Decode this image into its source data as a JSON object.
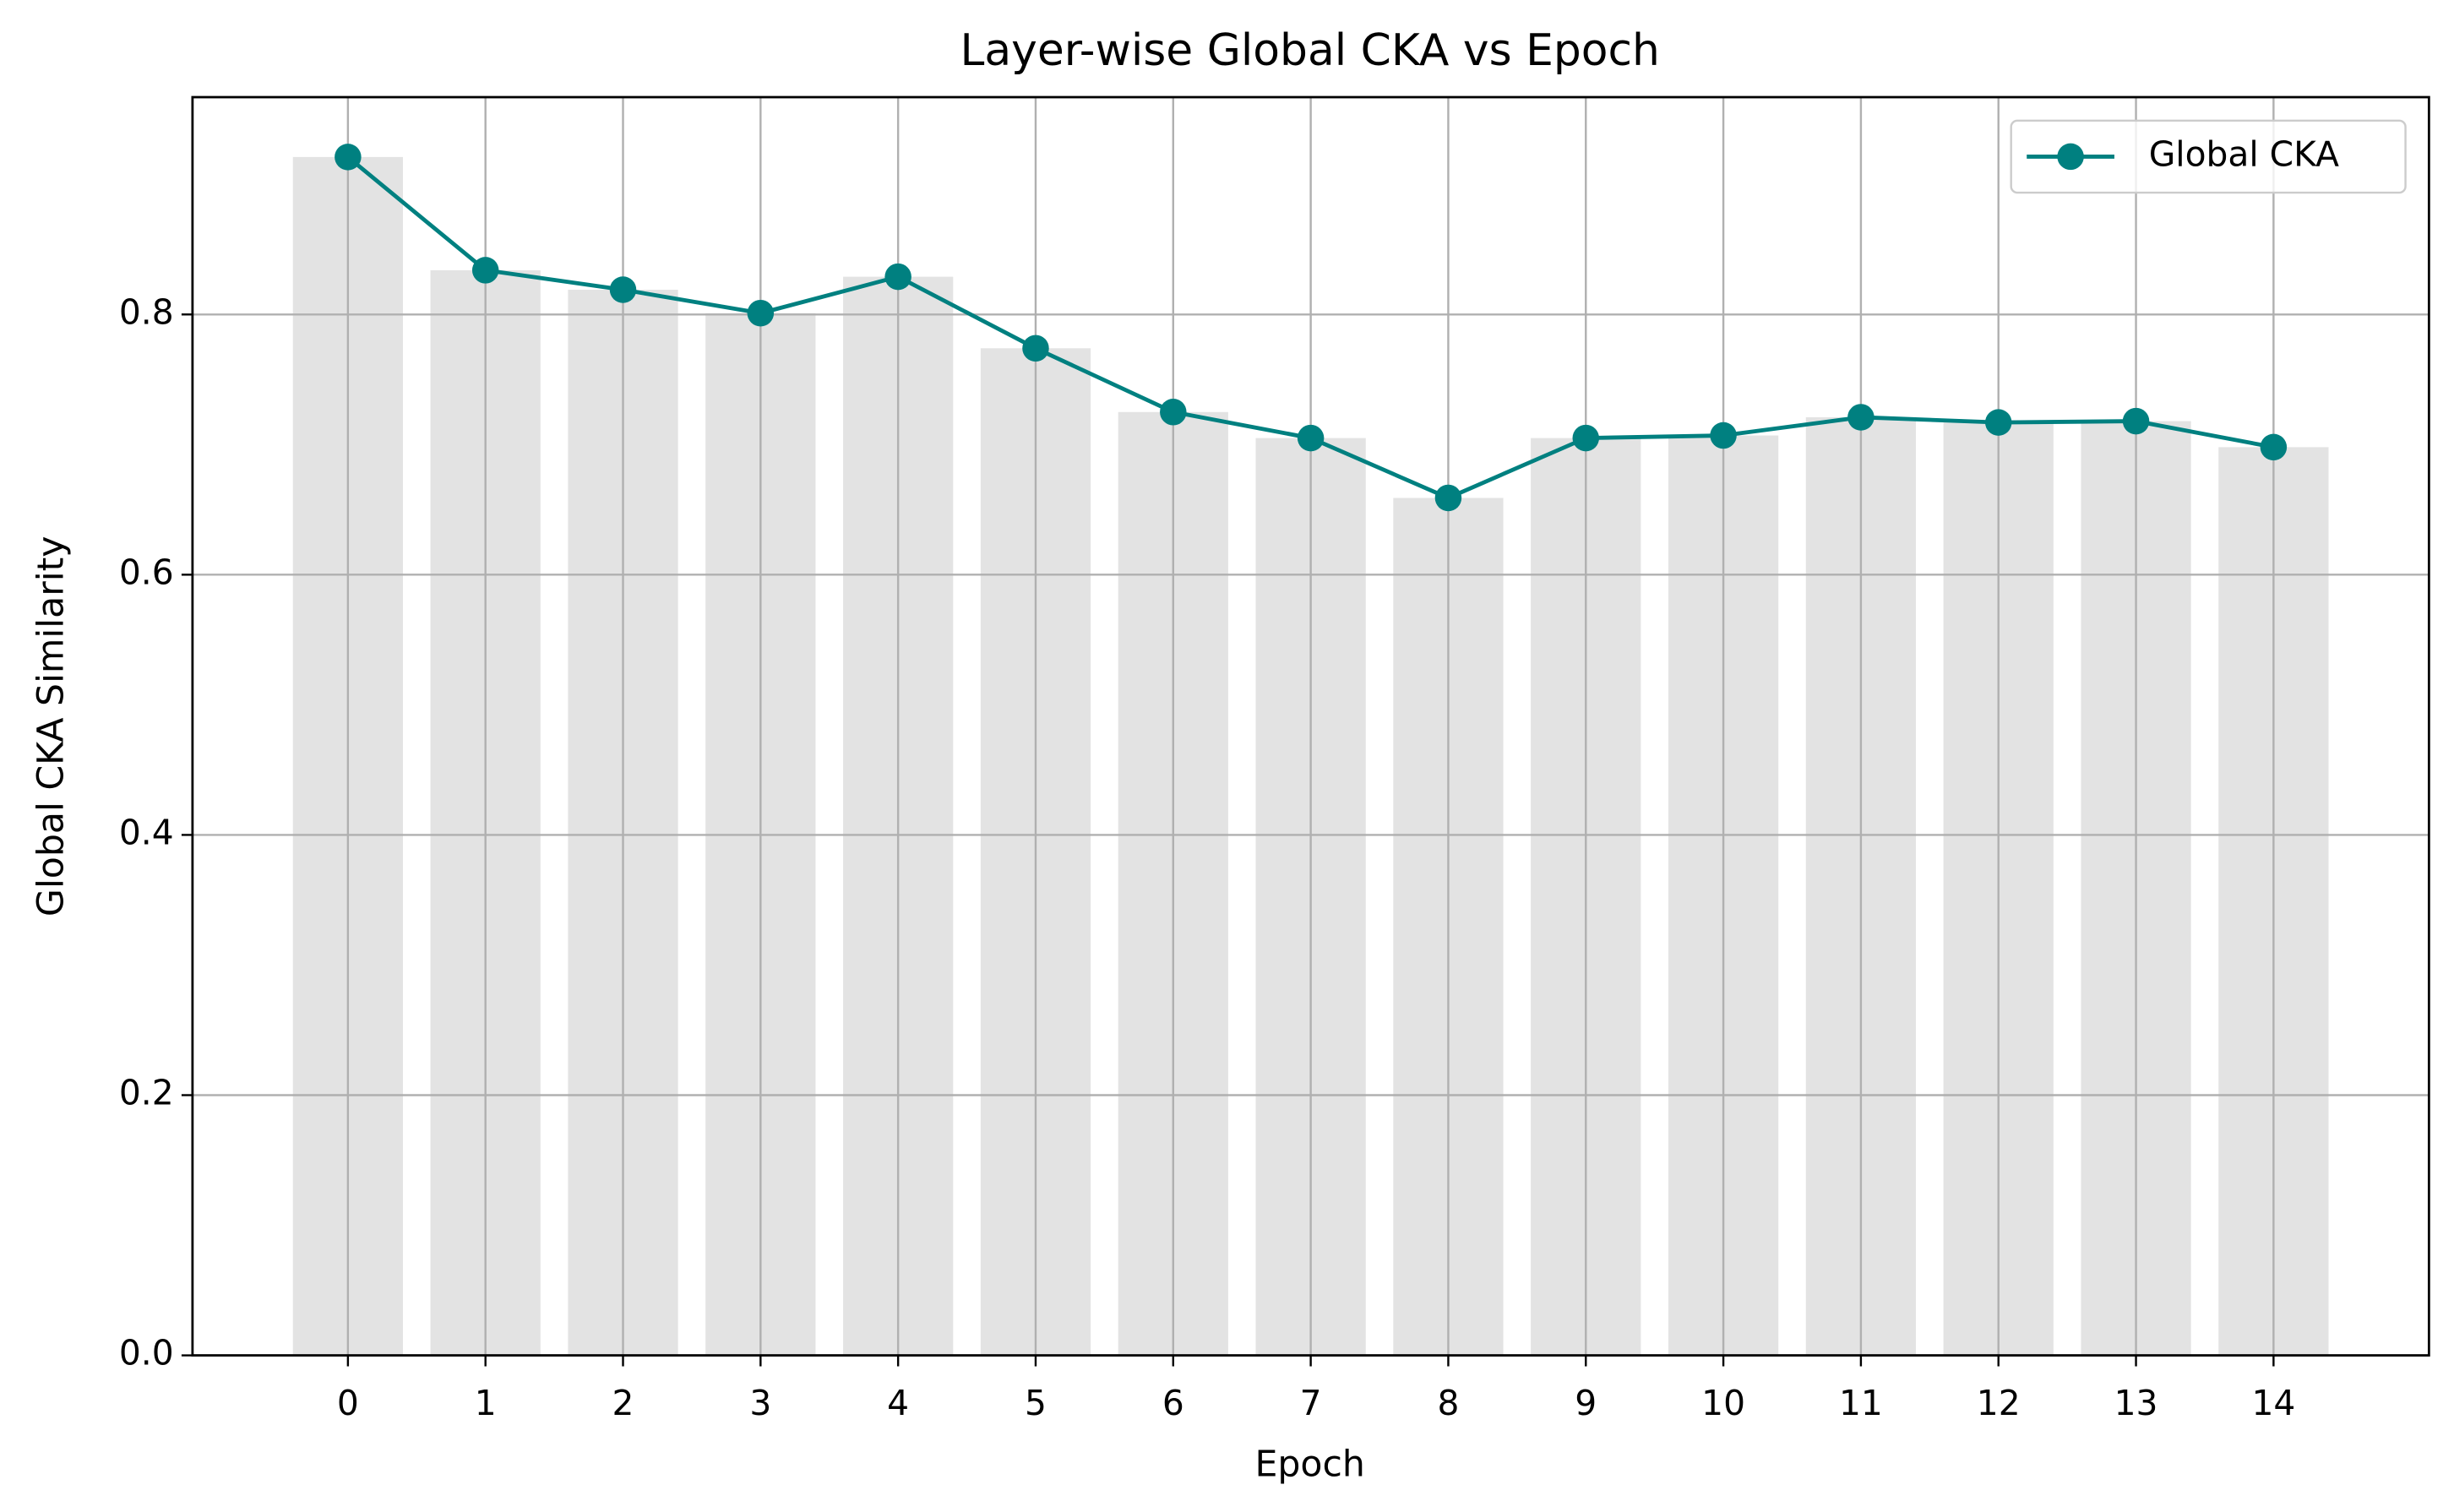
{
  "chart_data": {
    "type": "line",
    "title": "Layer-wise Global CKA vs Epoch",
    "x_label": "Epoch",
    "y_label": "Global CKA Similarity",
    "x": [
      0,
      1,
      2,
      3,
      4,
      5,
      6,
      7,
      8,
      9,
      10,
      11,
      12,
      13,
      14
    ],
    "series": [
      {
        "name": "Global CKA",
        "color": "#008080",
        "bar_color": "#e3e3e3",
        "values": [
          0.921,
          0.834,
          0.819,
          0.801,
          0.829,
          0.774,
          0.725,
          0.705,
          0.659,
          0.705,
          0.707,
          0.721,
          0.717,
          0.718,
          0.698
        ]
      }
    ],
    "xlim": [
      -1.13,
      15.13
    ],
    "xticks": [
      0,
      1,
      2,
      3,
      4,
      5,
      6,
      7,
      8,
      9,
      10,
      11,
      12,
      13,
      14
    ],
    "ylim": [
      0,
      0.967
    ],
    "yticks": [
      0.0,
      0.2,
      0.4,
      0.6,
      0.8
    ],
    "grid": true,
    "legend": "upper right"
  }
}
